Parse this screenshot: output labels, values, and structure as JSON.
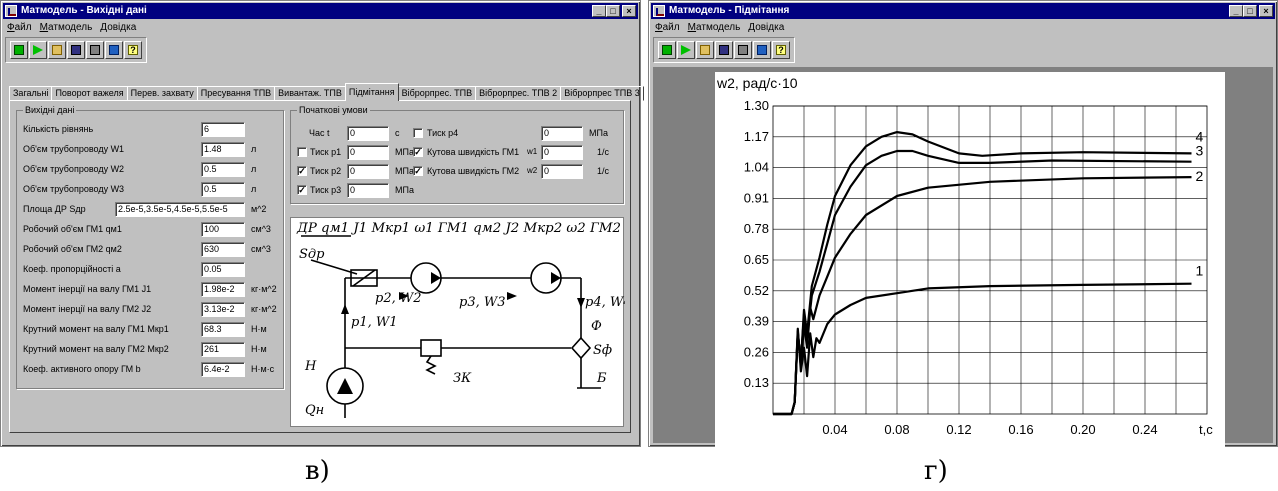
{
  "left_window": {
    "title": "Матмодель - Вихідні дані",
    "menu": [
      "Файл",
      "Матмодель",
      "Довідка"
    ],
    "tabs": [
      "Загальні",
      "Поворот важеля",
      "Перев. захвату",
      "Пресування ТПВ",
      "Вивантаж. ТПВ",
      "Підмітання",
      "Віброрпрес. ТПВ",
      "Віброрпрес. ТПВ 2",
      "Віброрпрес ТПВ 3"
    ],
    "active_tab": 5,
    "input_group": {
      "title": "Вихідні дані",
      "rows": [
        {
          "label": "Кількість рівнянь",
          "value": "6",
          "unit": ""
        },
        {
          "label": "Об'єм трубопроводу W1",
          "value": "1.48",
          "unit": "л"
        },
        {
          "label": "Об'єм трубопроводу W2",
          "value": "0.5",
          "unit": "л"
        },
        {
          "label": "Об'єм трубопроводу W3",
          "value": "0.5",
          "unit": "л"
        },
        {
          "label": "Площа ДР Sдр",
          "value": "2.5e-5,3.5e-5,4.5e-5,5.5e-5",
          "unit": "м^2"
        },
        {
          "label": "Робочий об'єм ГМ1 qм1",
          "value": "100",
          "unit": "см^3"
        },
        {
          "label": "Робочий об'єм ГМ2 qм2",
          "value": "630",
          "unit": "см^3"
        },
        {
          "label": "Коеф. пропорційності a",
          "value": "0.05",
          "unit": ""
        },
        {
          "label": "Момент інерції на валу ГМ1 J1",
          "value": "1.98e-2",
          "unit": "кг·м^2"
        },
        {
          "label": "Момент інерції на валу ГМ2 J2",
          "value": "3.13e-2",
          "unit": "кг·м^2"
        },
        {
          "label": "Крутний момент на валу ГМ1 Мкр1",
          "value": "68.3",
          "unit": "Н·м"
        },
        {
          "label": "Крутний момент на валу ГМ2 Мкр2",
          "value": "261",
          "unit": "Н·м"
        },
        {
          "label": "Коеф. активного опору ГМ b",
          "value": "6.4e-2",
          "unit": "Н·м·с"
        }
      ]
    },
    "initial_group": {
      "title": "Початкові умови",
      "time_label": "Час t",
      "time_value": "0",
      "time_unit": "с",
      "p1": {
        "label": "Тиск р1",
        "value": "0",
        "unit": "МПа",
        "checked": false
      },
      "p2": {
        "label": "Тиск р2",
        "value": "0",
        "unit": "МПа",
        "checked": true
      },
      "p3": {
        "label": "Тиск р3",
        "value": "0",
        "unit": "МПа",
        "checked": true
      },
      "p4": {
        "label": "Тиск р4",
        "value": "0",
        "unit": "МПа",
        "checked": false
      },
      "w1": {
        "label": "Кутова швидкість ГМ1",
        "symbol": "w1",
        "value": "0",
        "unit": "1/с",
        "checked": true
      },
      "w2": {
        "label": "Кутова швидкість ГМ2",
        "symbol": "w2",
        "value": "0",
        "unit": "1/с",
        "checked": true
      }
    },
    "schema_labels": {
      "top": "ДР  qм1  J1  Мкр1  ω1   ГМ1 qм2  J2  Мкр2  ω2   ГМ2",
      "sdr": "Sдр",
      "p2w2": "p2, W2",
      "p3w3": "p3, W3",
      "p4w4": "p4, W4",
      "p1w1": "p1, W1",
      "phi": "Ф",
      "sf": "Sф",
      "h": "Н",
      "qh": "Qн",
      "zk": "ЗК",
      "b": "Б"
    },
    "caption": "в)"
  },
  "right_window": {
    "title": "Матмодель - Підмітання",
    "menu": [
      "Файл",
      "Матмодель",
      "Довідка"
    ],
    "caption": "г)"
  },
  "chart_data": {
    "type": "line",
    "title": "",
    "ylabel": "w2, рад/с·10",
    "xlabel": "t,c",
    "xlim": [
      0,
      0.28
    ],
    "ylim": [
      0,
      1.3
    ],
    "x_ticks": [
      0.04,
      0.08,
      0.12,
      0.16,
      0.2,
      0.24
    ],
    "y_ticks": [
      0.13,
      0.26,
      0.39,
      0.52,
      0.65,
      0.78,
      0.91,
      1.04,
      1.17,
      1.3
    ],
    "grid": true,
    "series": [
      {
        "name": "1",
        "points": [
          [
            0,
            0
          ],
          [
            0.012,
            0
          ],
          [
            0.014,
            0.05
          ],
          [
            0.016,
            0.36
          ],
          [
            0.018,
            0.18
          ],
          [
            0.02,
            0.28
          ],
          [
            0.022,
            0.16
          ],
          [
            0.024,
            0.34
          ],
          [
            0.026,
            0.24
          ],
          [
            0.028,
            0.32
          ],
          [
            0.03,
            0.3
          ],
          [
            0.035,
            0.38
          ],
          [
            0.04,
            0.42
          ],
          [
            0.05,
            0.46
          ],
          [
            0.06,
            0.49
          ],
          [
            0.08,
            0.51
          ],
          [
            0.1,
            0.53
          ],
          [
            0.14,
            0.54
          ],
          [
            0.2,
            0.545
          ],
          [
            0.27,
            0.55
          ]
        ]
      },
      {
        "name": "2",
        "points": [
          [
            0,
            0
          ],
          [
            0.012,
            0
          ],
          [
            0.014,
            0.05
          ],
          [
            0.016,
            0.35
          ],
          [
            0.018,
            0.2
          ],
          [
            0.02,
            0.38
          ],
          [
            0.022,
            0.28
          ],
          [
            0.024,
            0.45
          ],
          [
            0.026,
            0.4
          ],
          [
            0.03,
            0.5
          ],
          [
            0.035,
            0.58
          ],
          [
            0.04,
            0.66
          ],
          [
            0.05,
            0.76
          ],
          [
            0.06,
            0.84
          ],
          [
            0.08,
            0.92
          ],
          [
            0.1,
            0.955
          ],
          [
            0.14,
            0.98
          ],
          [
            0.2,
            0.995
          ],
          [
            0.27,
            1.0
          ]
        ]
      },
      {
        "name": "3",
        "points": [
          [
            0,
            0
          ],
          [
            0.012,
            0
          ],
          [
            0.014,
            0.05
          ],
          [
            0.016,
            0.34
          ],
          [
            0.018,
            0.22
          ],
          [
            0.02,
            0.42
          ],
          [
            0.022,
            0.32
          ],
          [
            0.025,
            0.5
          ],
          [
            0.03,
            0.6
          ],
          [
            0.035,
            0.72
          ],
          [
            0.04,
            0.84
          ],
          [
            0.05,
            0.96
          ],
          [
            0.06,
            1.05
          ],
          [
            0.07,
            1.09
          ],
          [
            0.08,
            1.11
          ],
          [
            0.09,
            1.11
          ],
          [
            0.1,
            1.09
          ],
          [
            0.12,
            1.06
          ],
          [
            0.14,
            1.06
          ],
          [
            0.18,
            1.07
          ],
          [
            0.27,
            1.065
          ]
        ]
      },
      {
        "name": "4",
        "points": [
          [
            0,
            0
          ],
          [
            0.012,
            0
          ],
          [
            0.014,
            0.05
          ],
          [
            0.016,
            0.34
          ],
          [
            0.018,
            0.22
          ],
          [
            0.02,
            0.44
          ],
          [
            0.022,
            0.34
          ],
          [
            0.025,
            0.54
          ],
          [
            0.03,
            0.66
          ],
          [
            0.035,
            0.8
          ],
          [
            0.04,
            0.92
          ],
          [
            0.05,
            1.05
          ],
          [
            0.06,
            1.13
          ],
          [
            0.07,
            1.17
          ],
          [
            0.08,
            1.19
          ],
          [
            0.09,
            1.18
          ],
          [
            0.1,
            1.15
          ],
          [
            0.12,
            1.1
          ],
          [
            0.135,
            1.09
          ],
          [
            0.16,
            1.1
          ],
          [
            0.2,
            1.105
          ],
          [
            0.27,
            1.1
          ]
        ]
      }
    ]
  },
  "colors": {
    "window_face": "#c0c0c0",
    "titlebar": "#000080",
    "mdi": "#808080"
  }
}
